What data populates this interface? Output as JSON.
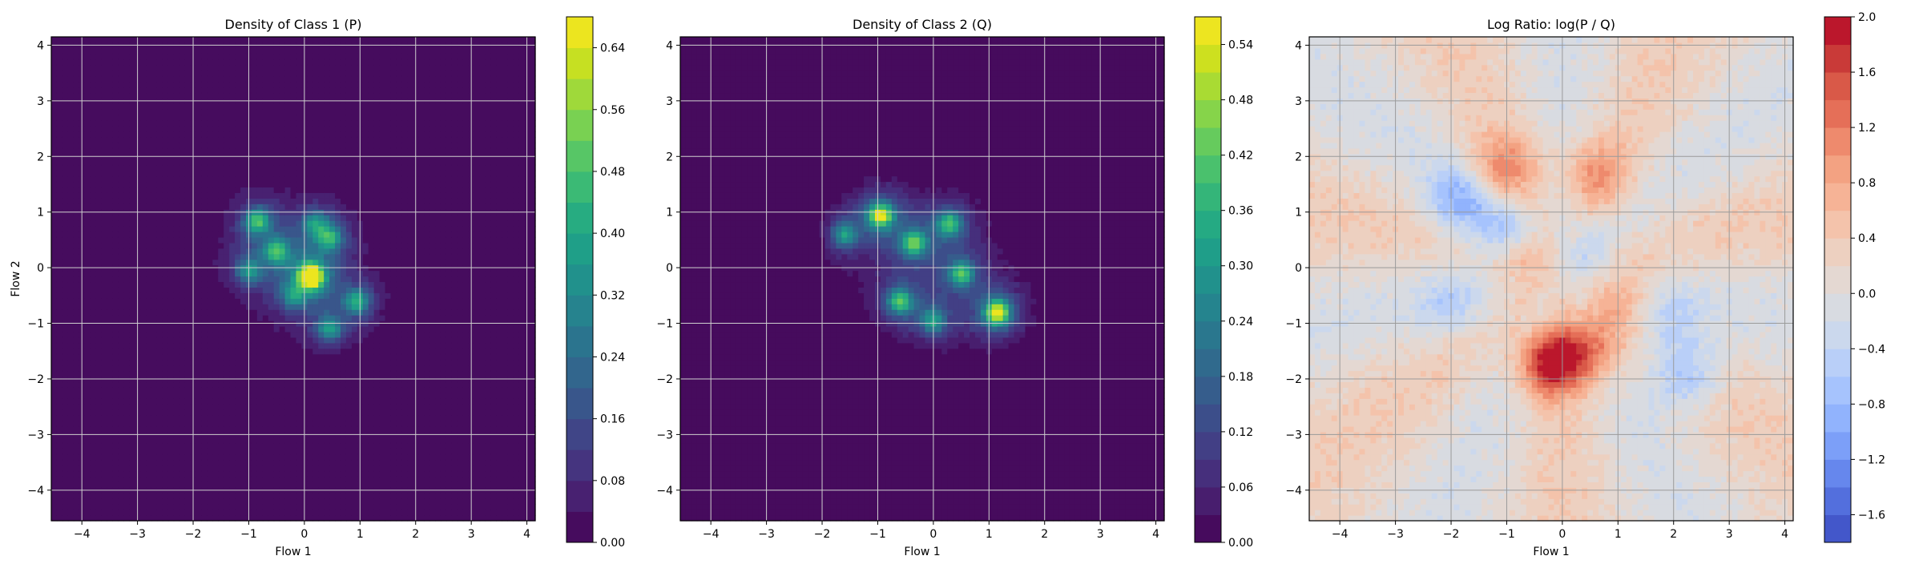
{
  "chart_data": [
    {
      "type": "heatmap",
      "subtype": "filled-contour",
      "title": "Density of Class 1 (P)",
      "xlabel": "Flow 1",
      "ylabel": "Flow 2",
      "xlim": [
        -4.55,
        4.15
      ],
      "ylim": [
        -4.55,
        4.15
      ],
      "xticks": [
        -4,
        -3,
        -2,
        -1,
        0,
        1,
        2,
        3,
        4
      ],
      "yticks": [
        -4,
        -3,
        -2,
        -1,
        0,
        1,
        2,
        3,
        4
      ],
      "grid": true,
      "colormap": "viridis",
      "colorbar": {
        "range": [
          0.0,
          0.68
        ],
        "ticks": [
          0.0,
          0.08,
          0.16,
          0.24,
          0.32,
          0.4,
          0.48,
          0.56,
          0.64
        ],
        "tick_labels": [
          "0.00",
          "0.08",
          "0.16",
          "0.24",
          "0.32",
          "0.40",
          "0.48",
          "0.56",
          "0.64"
        ],
        "levels": 17
      },
      "support": {
        "center": [
          0.0,
          0.0
        ],
        "extent_x": [
          -1.9,
          1.7
        ],
        "extent_y": [
          -1.9,
          2.1
        ],
        "background_value": 0.0
      },
      "peaks": [
        {
          "x": 0.12,
          "y": -0.15,
          "value": 0.66
        },
        {
          "x": -0.85,
          "y": 0.85,
          "value": 0.34
        },
        {
          "x": -0.5,
          "y": 0.3,
          "value": 0.3
        },
        {
          "x": 0.45,
          "y": 0.55,
          "value": 0.28
        },
        {
          "x": 0.95,
          "y": -0.6,
          "value": 0.3
        },
        {
          "x": 0.45,
          "y": -1.1,
          "value": 0.26
        },
        {
          "x": -1.0,
          "y": -0.05,
          "value": 0.24
        },
        {
          "x": 0.2,
          "y": 0.8,
          "value": 0.22
        },
        {
          "x": -0.2,
          "y": -0.5,
          "value": 0.2
        }
      ]
    },
    {
      "type": "heatmap",
      "subtype": "filled-contour",
      "title": "Density of Class 2 (Q)",
      "xlabel": "Flow 1",
      "ylabel": "",
      "xlim": [
        -4.55,
        4.15
      ],
      "ylim": [
        -4.55,
        4.15
      ],
      "xticks": [
        -4,
        -3,
        -2,
        -1,
        0,
        1,
        2,
        3,
        4
      ],
      "yticks": [
        -4,
        -3,
        -2,
        -1,
        0,
        1,
        2,
        3,
        4
      ],
      "grid": true,
      "colormap": "viridis",
      "colorbar": {
        "range": [
          0.0,
          0.57
        ],
        "ticks": [
          0.0,
          0.06,
          0.12,
          0.18,
          0.24,
          0.3,
          0.36,
          0.42,
          0.48,
          0.54
        ],
        "tick_labels": [
          "0.00",
          "0.06",
          "0.12",
          "0.18",
          "0.24",
          "0.30",
          "0.36",
          "0.42",
          "0.48",
          "0.54"
        ],
        "levels": 19
      },
      "support": {
        "center": [
          0.1,
          -0.1
        ],
        "extent_x": [
          -2.2,
          2.1
        ],
        "extent_y": [
          -1.8,
          1.9
        ],
        "background_value": 0.0
      },
      "peaks": [
        {
          "x": -0.95,
          "y": 0.95,
          "value": 0.4
        },
        {
          "x": 1.15,
          "y": -0.8,
          "value": 0.44
        },
        {
          "x": -0.35,
          "y": 0.45,
          "value": 0.3
        },
        {
          "x": 0.3,
          "y": 0.8,
          "value": 0.28
        },
        {
          "x": -0.6,
          "y": -0.6,
          "value": 0.3
        },
        {
          "x": 0.5,
          "y": -0.1,
          "value": 0.28
        },
        {
          "x": -1.6,
          "y": 0.6,
          "value": 0.22
        },
        {
          "x": 0.0,
          "y": -0.95,
          "value": 0.22
        }
      ]
    },
    {
      "type": "heatmap",
      "subtype": "filled-contour",
      "title": "Log Ratio: log(P / Q)",
      "xlabel": "Flow 1",
      "ylabel": "",
      "xlim": [
        -4.55,
        4.15
      ],
      "ylim": [
        -4.55,
        4.15
      ],
      "xticks": [
        -4,
        -3,
        -2,
        -1,
        0,
        1,
        2,
        3,
        4
      ],
      "yticks": [
        -4,
        -3,
        -2,
        -1,
        0,
        1,
        2,
        3,
        4
      ],
      "grid": true,
      "colormap": "coolwarm",
      "colorbar": {
        "range": [
          -1.8,
          2.0
        ],
        "ticks": [
          -1.6,
          -1.2,
          -0.8,
          -0.4,
          0.0,
          0.4,
          0.8,
          1.2,
          1.6,
          2.0
        ],
        "tick_labels": [
          "−1.6",
          "−1.2",
          "−0.8",
          "−0.4",
          "0.0",
          "0.4",
          "0.8",
          "1.2",
          "1.6",
          "2.0"
        ],
        "levels": 19
      },
      "regions": [
        {
          "x": -0.2,
          "y": -1.7,
          "value": 1.9
        },
        {
          "x": -1.05,
          "y": 1.8,
          "value": 0.9
        },
        {
          "x": 0.6,
          "y": 1.7,
          "value": 0.8
        },
        {
          "x": -0.7,
          "y": 0.2,
          "value": 0.7
        },
        {
          "x": 0.55,
          "y": -1.4,
          "value": 1.0
        },
        {
          "x": 1.05,
          "y": -0.4,
          "value": 0.6
        },
        {
          "x": -1.85,
          "y": 1.2,
          "value": -0.9
        },
        {
          "x": -1.0,
          "y": 0.6,
          "value": -0.8
        },
        {
          "x": 2.25,
          "y": -1.9,
          "value": -0.9
        },
        {
          "x": 1.9,
          "y": -1.0,
          "value": -0.6
        },
        {
          "x": -2.0,
          "y": -0.7,
          "value": -0.5
        },
        {
          "x": 0.5,
          "y": 0.2,
          "value": -0.5
        }
      ],
      "far_field_value": 0.2
    }
  ]
}
